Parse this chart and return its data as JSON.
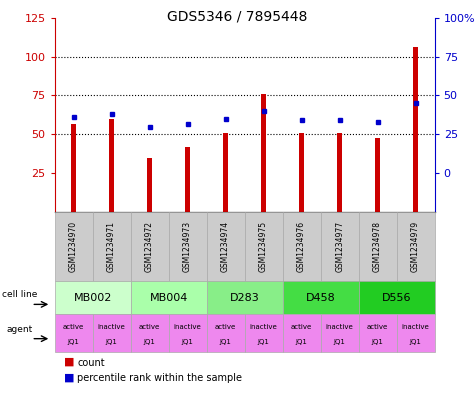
{
  "title": "GDS5346 / 7895448",
  "samples": [
    "GSM1234970",
    "GSM1234971",
    "GSM1234972",
    "GSM1234973",
    "GSM1234974",
    "GSM1234975",
    "GSM1234976",
    "GSM1234977",
    "GSM1234978",
    "GSM1234979"
  ],
  "counts": [
    57,
    60,
    35,
    42,
    51,
    76,
    51,
    51,
    48,
    106
  ],
  "percentiles": [
    36,
    38,
    30,
    32,
    35,
    40,
    34,
    34,
    33,
    45
  ],
  "ylim_left": [
    0,
    125
  ],
  "ylim_right": [
    -25,
    100
  ],
  "yticks_left": [
    25,
    50,
    75,
    100,
    125
  ],
  "yticks_right": [
    0,
    25,
    50,
    75,
    100
  ],
  "yticklabels_right": [
    "0",
    "25",
    "50",
    "75",
    "100%"
  ],
  "bar_color": "#cc0000",
  "marker_color": "#0000cc",
  "grid_dotlines": [
    50,
    75,
    100
  ],
  "bar_width": 0.12,
  "sample_bg": "#cccccc",
  "agent_color": "#ee88ee",
  "cell_lines": [
    {
      "label": "MB002",
      "start": 0,
      "end": 2,
      "color": "#ccffcc"
    },
    {
      "label": "MB004",
      "start": 2,
      "end": 4,
      "color": "#aaffaa"
    },
    {
      "label": "D283",
      "start": 4,
      "end": 6,
      "color": "#88ee88"
    },
    {
      "label": "D458",
      "start": 6,
      "end": 8,
      "color": "#44dd44"
    },
    {
      "label": "D556",
      "start": 8,
      "end": 10,
      "color": "#22cc22"
    }
  ]
}
